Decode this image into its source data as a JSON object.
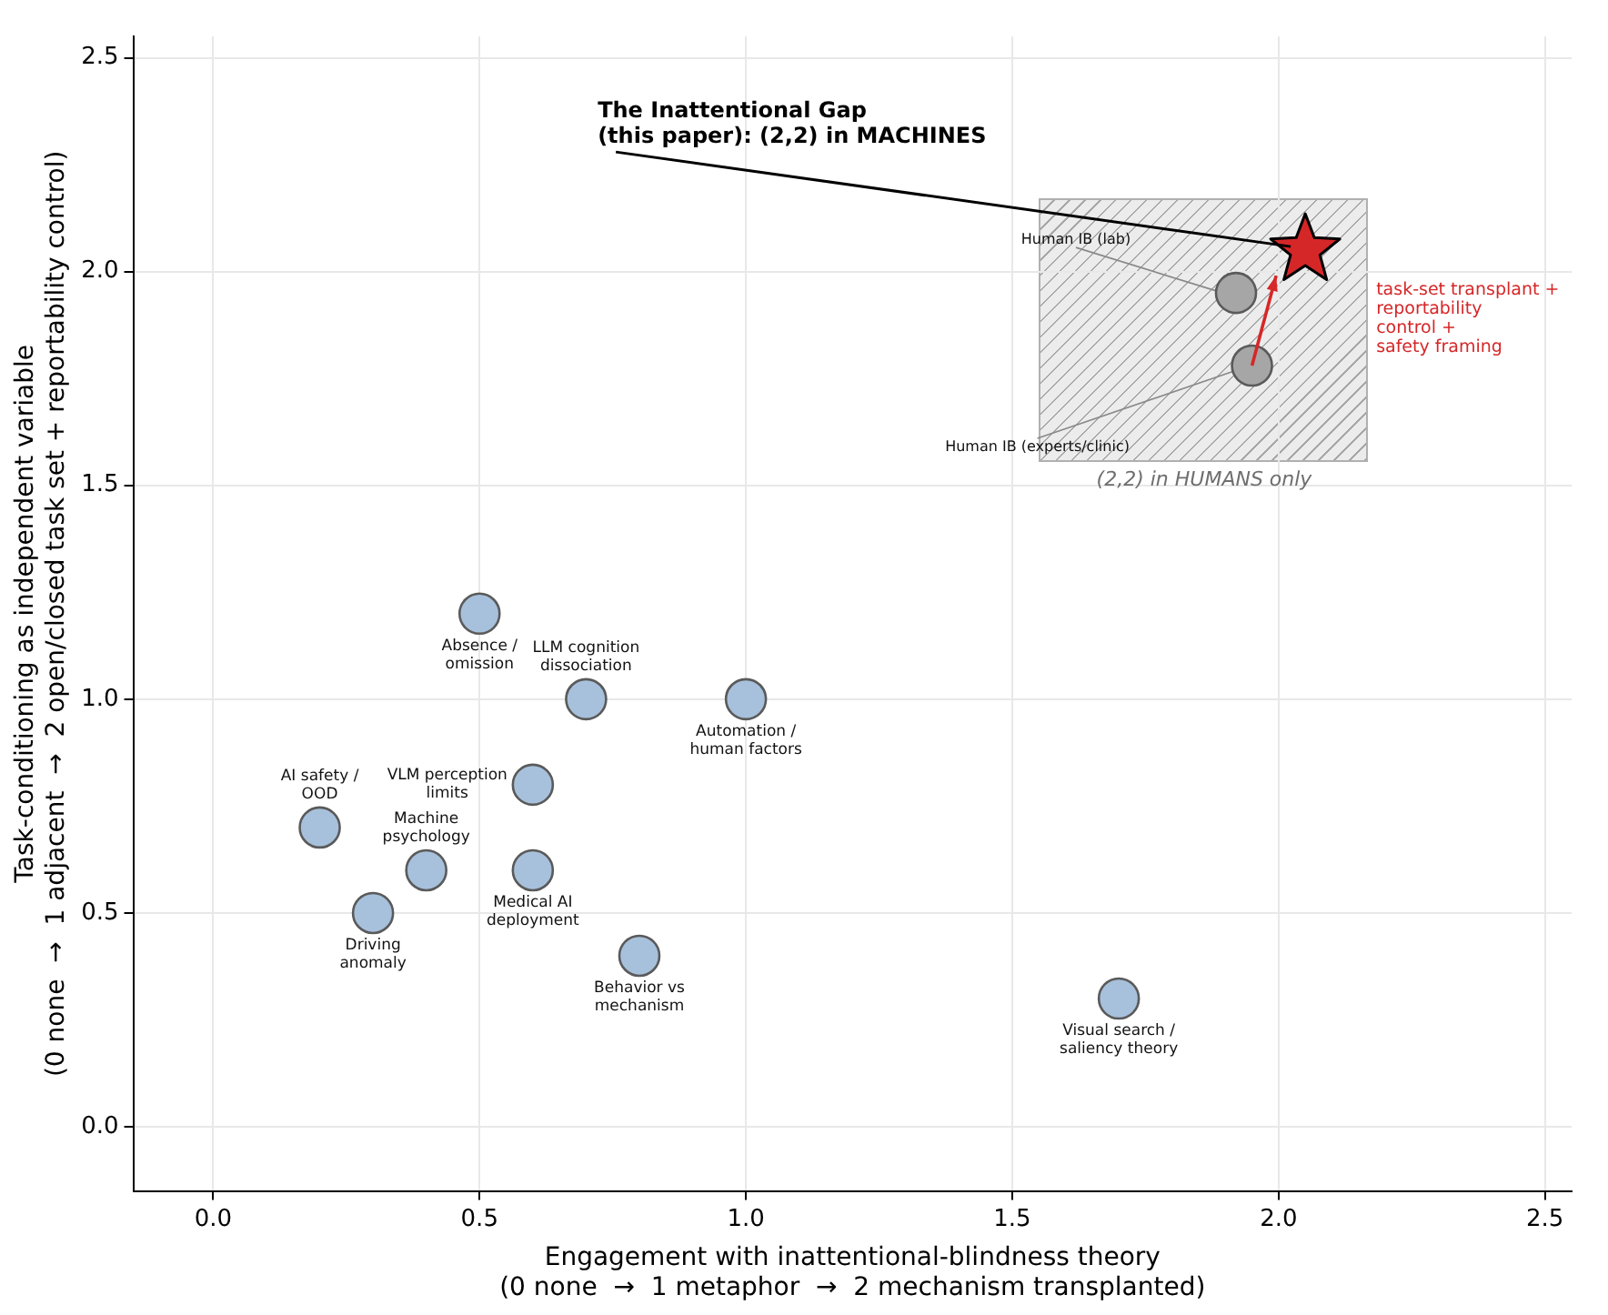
{
  "chart_data": {
    "type": "scatter",
    "xlabel": "Engagement with inattentional-blindness theory\n(0 none  →  1 metaphor  →  2 mechanism transplanted)",
    "ylabel": "Task-conditioning as independent variable\n(0 none  →  1 adjacent  →  2 open/closed task set + reportability control)",
    "xlim": [
      -0.15,
      2.55
    ],
    "ylim": [
      -0.15,
      2.55
    ],
    "xticks": [
      {
        "value": 0,
        "label": "0.0"
      },
      {
        "value": 0.5,
        "label": "0.5"
      },
      {
        "value": 1,
        "label": "1.0"
      },
      {
        "value": 1.5,
        "label": "1.5"
      },
      {
        "value": 2,
        "label": "2.0"
      },
      {
        "value": 2.5,
        "label": "2.5"
      }
    ],
    "yticks": [
      {
        "value": 0,
        "label": "0.0"
      },
      {
        "value": 0.5,
        "label": "0.5"
      },
      {
        "value": 1,
        "label": "1.0"
      },
      {
        "value": 1.5,
        "label": "1.5"
      },
      {
        "value": 2,
        "label": "2.0"
      },
      {
        "value": 2.5,
        "label": "2.5"
      }
    ],
    "grid": true,
    "legend": false,
    "marker": "circle",
    "series": [
      {
        "name": "AI safety /\nOOD",
        "color": "#a7c1dc",
        "x": [
          0.2
        ],
        "values": [
          0.7
        ]
      },
      {
        "name": "Driving\nanomaly",
        "color": "#a7c1dc",
        "x": [
          0.3
        ],
        "values": [
          0.5
        ]
      },
      {
        "name": "Machine\npsychology",
        "color": "#a7c1dc",
        "x": [
          0.4
        ],
        "values": [
          0.6
        ]
      },
      {
        "name": "Absence /\nomission",
        "color": "#a7c1dc",
        "x": [
          0.5
        ],
        "values": [
          1.2
        ]
      },
      {
        "name": "VLM perception\nlimits",
        "color": "#a7c1dc",
        "x": [
          0.6
        ],
        "values": [
          0.8
        ]
      },
      {
        "name": "Medical AI\ndeployment",
        "color": "#a7c1dc",
        "x": [
          0.6
        ],
        "values": [
          0.6
        ]
      },
      {
        "name": "LLM cognition\ndissociation",
        "color": "#a7c1dc",
        "x": [
          0.7
        ],
        "values": [
          1.0
        ]
      },
      {
        "name": "Behavior vs\nmechanism",
        "color": "#a7c1dc",
        "x": [
          0.8
        ],
        "values": [
          0.4
        ]
      },
      {
        "name": "Automation /\nhuman factors",
        "color": "#a7c1dc",
        "x": [
          1.0
        ],
        "values": [
          1.0
        ]
      },
      {
        "name": "Visual search /\nsaliency theory",
        "color": "#a7c1dc",
        "x": [
          1.7
        ],
        "values": [
          0.3
        ]
      },
      {
        "name": "Human IB (lab)",
        "color": "#a6a6a6",
        "x": [
          1.92
        ],
        "values": [
          1.95
        ]
      },
      {
        "name": "Human IB (experts/clinic)",
        "color": "#a6a6a6",
        "x": [
          1.95
        ],
        "values": [
          1.78
        ]
      },
      {
        "color": "#d62728",
        "marker": "star",
        "x": [
          2.05
        ],
        "values": [
          2.05
        ]
      }
    ],
    "annotations": [
      "(2,2) in HUMANS only",
      {
        "text": "The Inattentional Gap\n(this paper): (2,2) in MACHINES",
        "x": 2.05,
        "y": 2.05
      },
      "task-set transplant +\nreportability\ncontrol +\nsafety framing"
    ]
  }
}
